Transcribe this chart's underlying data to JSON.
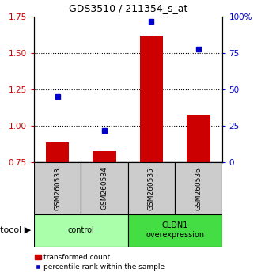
{
  "title": "GDS3510 / 211354_s_at",
  "samples": [
    "GSM260533",
    "GSM260534",
    "GSM260535",
    "GSM260536"
  ],
  "bar_values": [
    0.89,
    0.83,
    1.62,
    1.08
  ],
  "percentile_values": [
    45,
    22,
    97,
    78
  ],
  "bar_color": "#cc0000",
  "marker_color": "#0000cc",
  "ylim_left": [
    0.75,
    1.75
  ],
  "ylim_right": [
    0,
    100
  ],
  "yticks_left": [
    0.75,
    1.0,
    1.25,
    1.5,
    1.75
  ],
  "yticks_right": [
    0,
    25,
    50,
    75,
    100
  ],
  "ytick_labels_right": [
    "0",
    "25",
    "50",
    "75",
    "100%"
  ],
  "grid_values": [
    1.0,
    1.25,
    1.5
  ],
  "groups": [
    {
      "label": "control",
      "samples": [
        0,
        1
      ],
      "color": "#aaffaa"
    },
    {
      "label": "CLDN1\noverexpression",
      "samples": [
        2,
        3
      ],
      "color": "#44dd44"
    }
  ],
  "legend_bar_label": "transformed count",
  "legend_marker_label": "percentile rank within the sample",
  "protocol_label": "protocol",
  "bar_width": 0.5,
  "bar_bottom": 0.75,
  "sample_box_color": "#cccccc",
  "sample_box_color2": "#bbbbbb"
}
